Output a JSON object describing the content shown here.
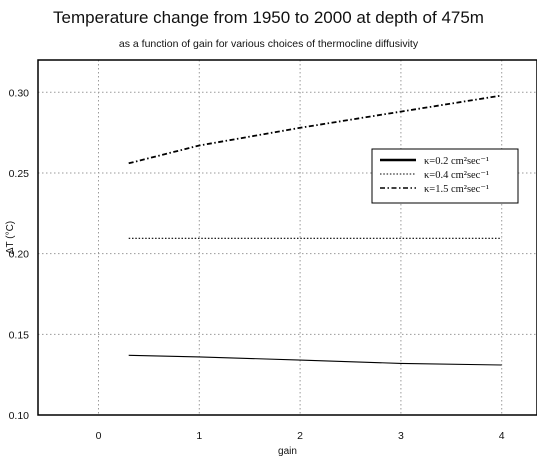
{
  "chart_data": {
    "type": "line",
    "title": "Temperature change from 1950 to 2000 at depth of 475m",
    "subtitle": "as a function of gain for various choices of thermocline diffusivity",
    "xlabel": "gain",
    "ylabel": "ΔT (°C)",
    "xlim": [
      -0.6,
      4.35
    ],
    "ylim": [
      0.1,
      0.32
    ],
    "xticks": [
      0,
      1,
      2,
      3,
      4
    ],
    "xtick_labels": [
      "0",
      "1",
      "2",
      "3",
      "4"
    ],
    "yticks": [
      0.1,
      0.15,
      0.2,
      0.25,
      0.3
    ],
    "ytick_labels": [
      "0.10",
      "0.15",
      "0.20",
      "0.25",
      "0.30"
    ],
    "grid": true,
    "legend_position": "right",
    "series": [
      {
        "name": "κ=0.2 cm²sec⁻¹",
        "style": "solid",
        "x": [
          0.3,
          1,
          2,
          3,
          4
        ],
        "y": [
          0.137,
          0.136,
          0.134,
          0.132,
          0.131
        ]
      },
      {
        "name": "κ=0.4 cm²sec⁻¹",
        "style": "dotted",
        "x": [
          0.3,
          1,
          2,
          3,
          4
        ],
        "y": [
          0.2095,
          0.2095,
          0.2095,
          0.2095,
          0.2095
        ]
      },
      {
        "name": "κ=1.5 cm²sec⁻¹",
        "style": "dashdot",
        "x": [
          0.3,
          1,
          2,
          3,
          4
        ],
        "y": [
          0.256,
          0.267,
          0.278,
          0.288,
          0.298
        ]
      }
    ]
  }
}
